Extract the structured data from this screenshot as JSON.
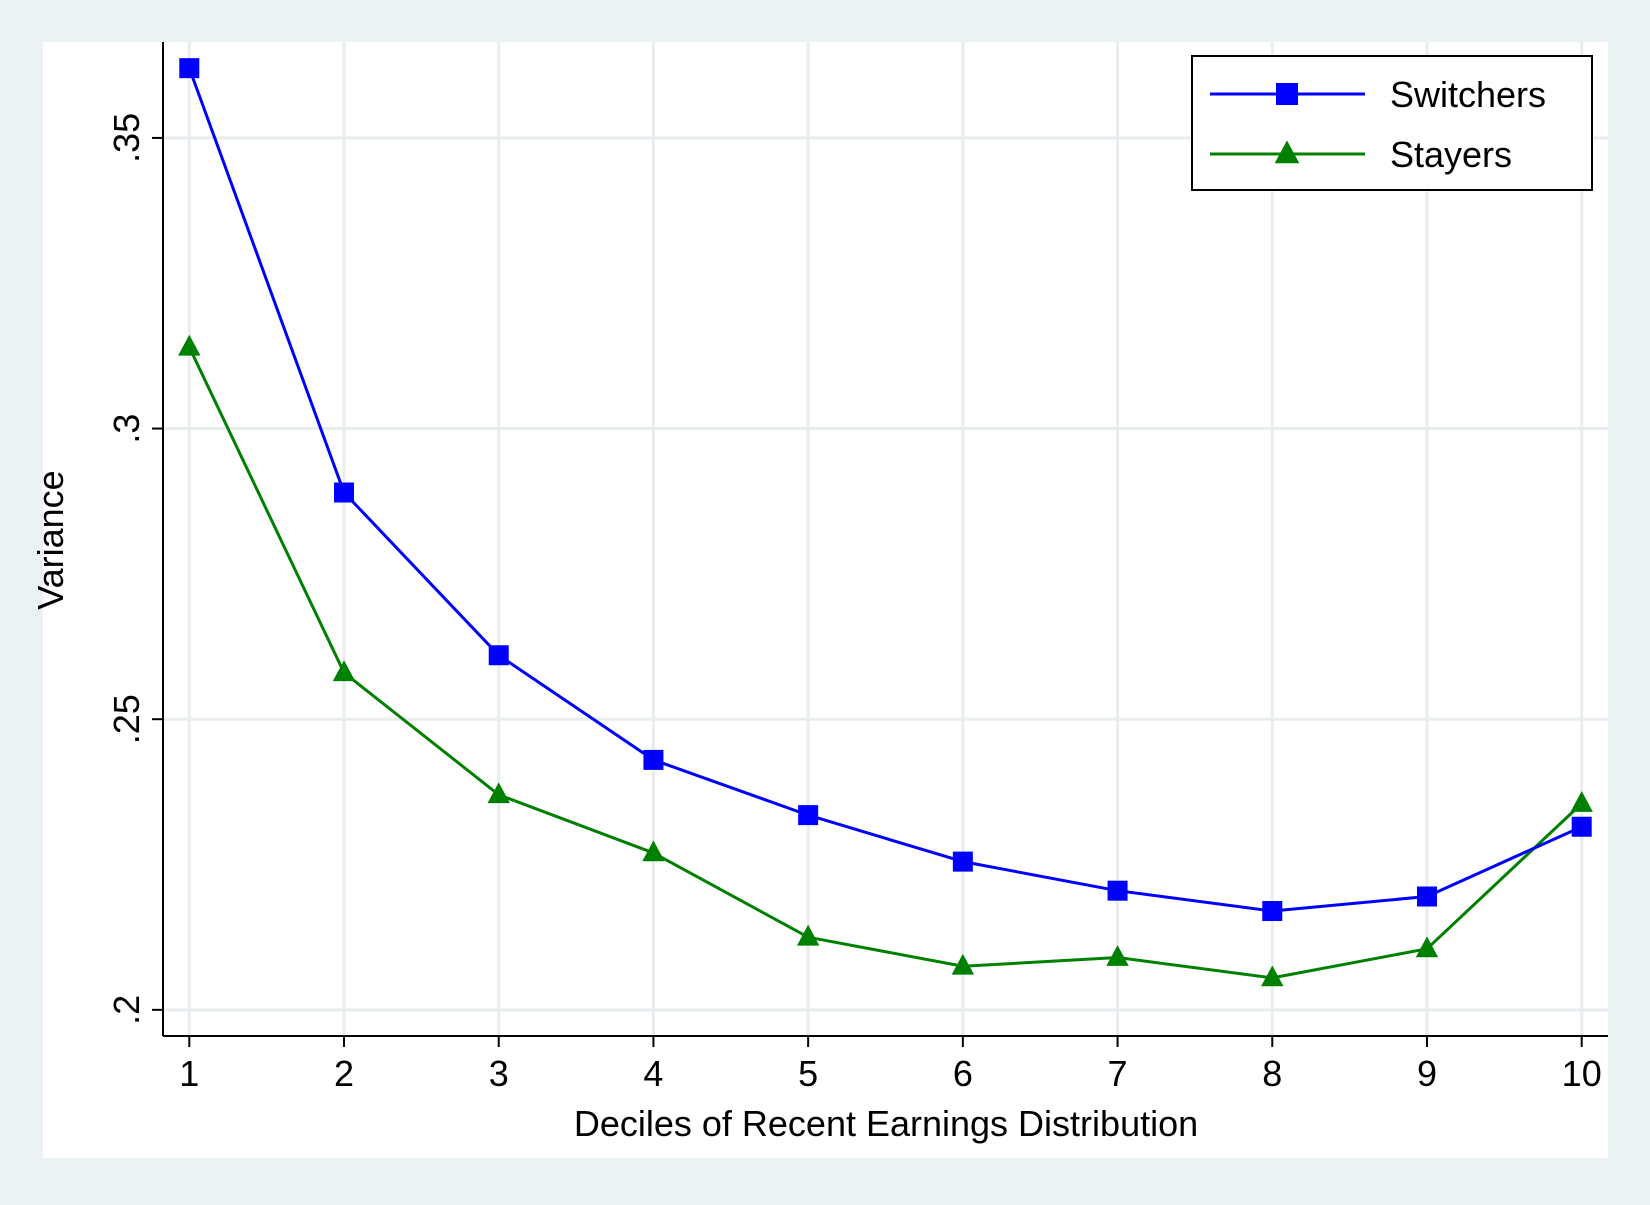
{
  "chart_data": {
    "type": "line",
    "title": "",
    "xlabel": "Deciles of Recent Earnings Distribution",
    "ylabel": "Variance",
    "x": [
      1,
      2,
      3,
      4,
      5,
      6,
      7,
      8,
      9,
      10
    ],
    "x_tick_labels": [
      "1",
      "2",
      "3",
      "4",
      "5",
      "6",
      "7",
      "8",
      "9",
      "10"
    ],
    "y_ticks": [
      0.2,
      0.25,
      0.3,
      0.35
    ],
    "y_tick_labels": [
      ".2",
      ".25",
      ".3",
      ".35"
    ],
    "xlim": [
      0.83,
      10.17
    ],
    "ylim": [
      0.1955,
      0.3665
    ],
    "grid": true,
    "legend_position": "top-right",
    "series": [
      {
        "name": "Switchers",
        "color": "#0000ff",
        "marker": "square",
        "values": [
          0.362,
          0.289,
          0.261,
          0.243,
          0.2335,
          0.2255,
          0.2205,
          0.217,
          0.2195,
          0.2315
        ]
      },
      {
        "name": "Stayers",
        "color": "#008000",
        "marker": "triangle",
        "values": [
          0.314,
          0.258,
          0.237,
          0.227,
          0.2125,
          0.2075,
          0.209,
          0.2055,
          0.2105,
          0.2355
        ]
      }
    ]
  }
}
